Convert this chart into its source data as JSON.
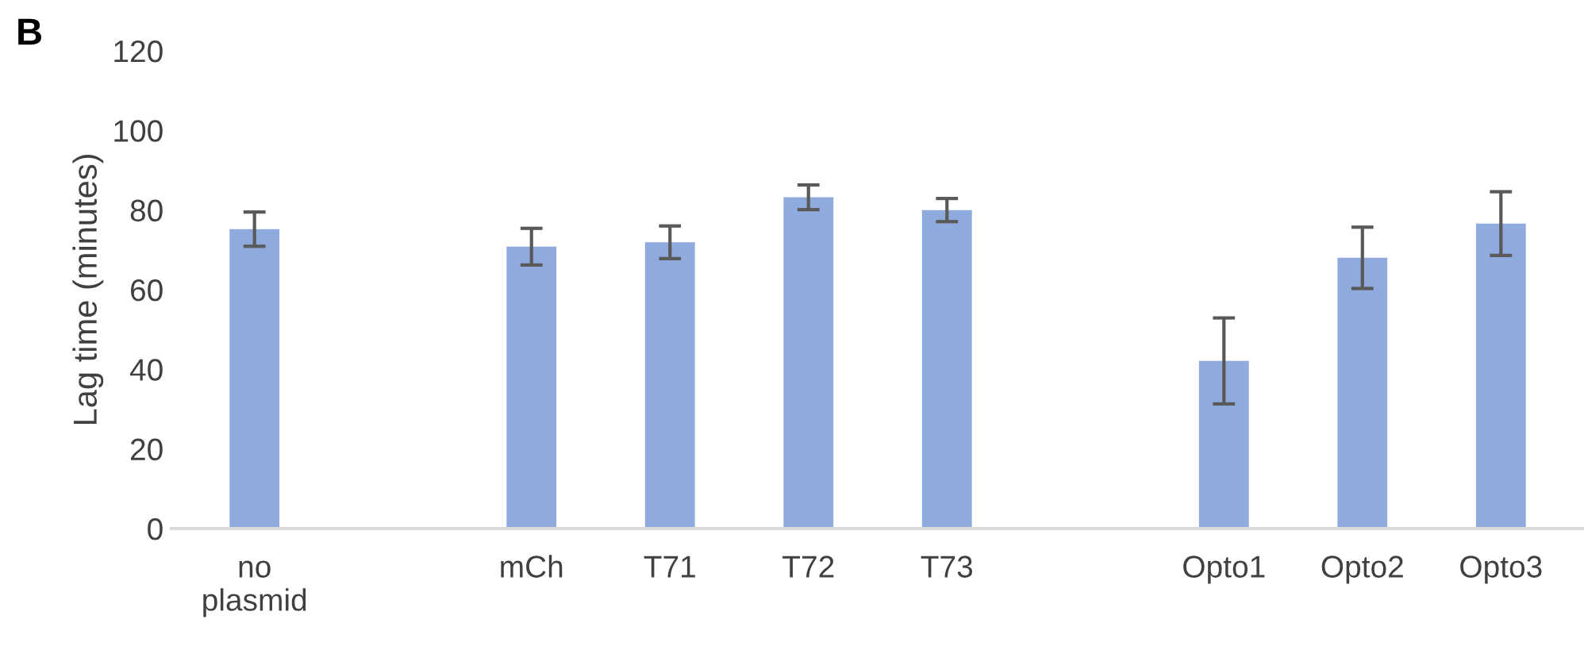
{
  "chart_data": {
    "type": "bar",
    "title": "B",
    "ylabel": "Lag time (minutes)",
    "categories": [
      "no\nplasmid",
      null,
      "mCh",
      "T71",
      "T72",
      "T73",
      null,
      "Opto1",
      "Opto2",
      "Opto3"
    ],
    "values": [
      75.2,
      null,
      70.8,
      71.9,
      83.2,
      80.0,
      null,
      42.1,
      68.0,
      76.6
    ],
    "errors": [
      4.3,
      null,
      4.6,
      4.1,
      3.1,
      2.9,
      null,
      10.8,
      7.7,
      8.0
    ],
    "color": "#8faadc",
    "ylim": [
      0,
      120
    ],
    "yticks": [
      0,
      20,
      40,
      60,
      80,
      100,
      120
    ],
    "grid": false,
    "legend": false
  }
}
